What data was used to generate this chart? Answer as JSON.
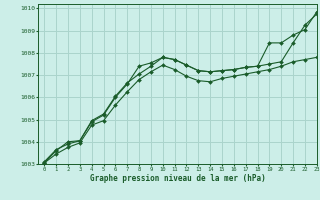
{
  "title": "Graphe pression niveau de la mer (hPa)",
  "background_color": "#cceee8",
  "grid_color": "#aad4cc",
  "line_color": "#1a5c2a",
  "xlim": [
    -0.5,
    23
  ],
  "ylim": [
    1003,
    1010.2
  ],
  "yticks": [
    1003,
    1004,
    1005,
    1006,
    1007,
    1008,
    1009,
    1010
  ],
  "xticks": [
    0,
    1,
    2,
    3,
    4,
    5,
    6,
    7,
    8,
    9,
    10,
    11,
    12,
    13,
    14,
    15,
    16,
    17,
    18,
    19,
    20,
    21,
    22,
    23
  ],
  "series": [
    [
      1003.1,
      1003.65,
      1003.9,
      1004.05,
      1004.95,
      1005.25,
      1006.05,
      1006.65,
      1007.05,
      1007.4,
      1007.8,
      1007.7,
      1007.45,
      1007.2,
      1007.15,
      1007.2,
      1007.25,
      1007.35,
      1007.4,
      1007.5,
      1007.6,
      1008.45,
      1009.25,
      1009.75
    ],
    [
      1003.05,
      1003.6,
      1004.0,
      1004.05,
      1004.9,
      1005.2,
      1006.0,
      1006.6,
      1007.4,
      1007.55,
      1007.8,
      1007.7,
      1007.45,
      1007.2,
      1007.15,
      1007.2,
      1007.25,
      1007.35,
      1007.4,
      1008.45,
      1008.45,
      1008.8,
      1009.05,
      1009.85
    ],
    [
      1003.05,
      1003.45,
      1003.75,
      1003.95,
      1004.75,
      1004.95,
      1005.65,
      1006.25,
      1006.8,
      1007.15,
      1007.45,
      1007.25,
      1006.95,
      1006.75,
      1006.7,
      1006.85,
      1006.95,
      1007.05,
      1007.15,
      1007.25,
      1007.4,
      1007.6,
      1007.7,
      1007.8
    ]
  ]
}
